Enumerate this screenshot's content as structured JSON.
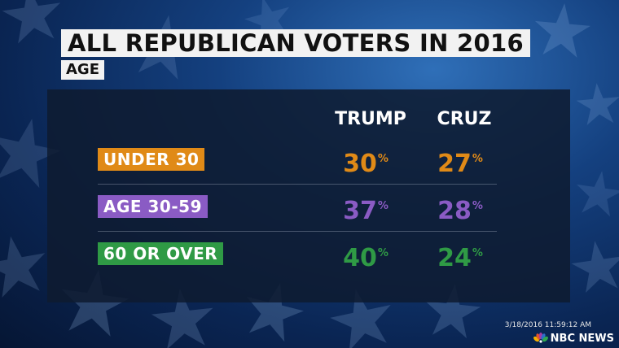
{
  "header": {
    "title": "ALL REPUBLICAN VOTERS IN 2016",
    "subtitle": "AGE"
  },
  "table": {
    "columns": [
      "TRUMP",
      "CRUZ"
    ],
    "rows": [
      {
        "label": "UNDER 30",
        "color": "#e08a17",
        "trump": "30",
        "cruz": "27"
      },
      {
        "label": "AGE 30-59",
        "color": "#8a5bc4",
        "trump": "37",
        "cruz": "28"
      },
      {
        "label": "60 OR OVER",
        "color": "#2f9a45",
        "trump": "40",
        "cruz": "24"
      }
    ],
    "percent_sign": "%"
  },
  "footer": {
    "timestamp": "3/18/2016 11:59:12 AM",
    "network": "NBC NEWS"
  },
  "colors": {
    "background": "#14407f",
    "panel": "#0e1b30",
    "title_bg": "#f2f2f2"
  }
}
